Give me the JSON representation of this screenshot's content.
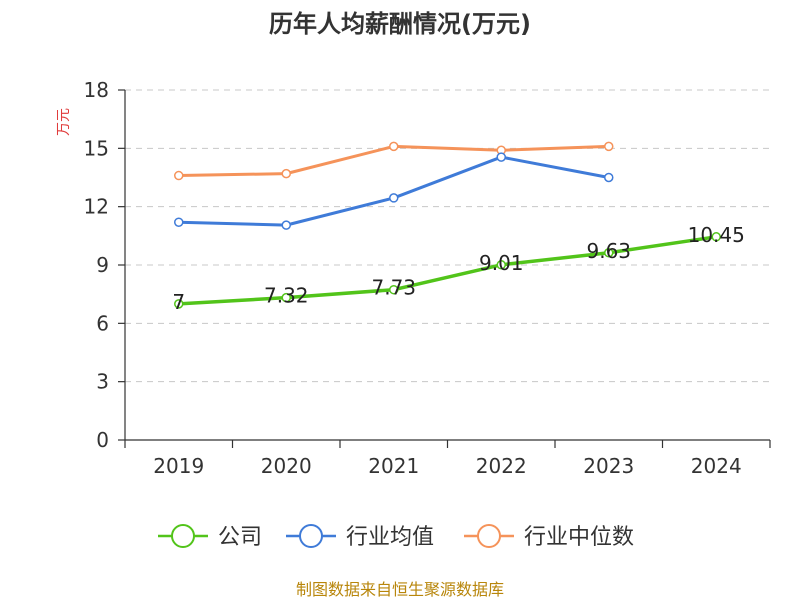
{
  "chart_data": {
    "type": "line",
    "title": "历年人均薪酬情况(万元)",
    "xlabel": "",
    "ylabel": "万元",
    "categories": [
      "2019",
      "2020",
      "2021",
      "2022",
      "2023",
      "2024"
    ],
    "ylim": [
      0,
      18
    ],
    "yticks": [
      0,
      3,
      6,
      9,
      12,
      15,
      18
    ],
    "grid": true,
    "legend_position": "bottom",
    "series": [
      {
        "name": "公司",
        "color": "#52c41a",
        "values": [
          7,
          7.32,
          7.73,
          9.01,
          9.63,
          10.45
        ],
        "labels": [
          "7",
          "7.32",
          "7.73",
          "9.01",
          "9.63",
          "10.45"
        ]
      },
      {
        "name": "行业均值",
        "color": "#3f7bd8",
        "values": [
          11.2,
          11.05,
          12.45,
          14.55,
          13.5,
          null
        ]
      },
      {
        "name": "行业中位数",
        "color": "#f5935a",
        "values": [
          13.6,
          13.7,
          15.1,
          14.9,
          15.1,
          null
        ]
      }
    ],
    "source": "制图数据来自恒生聚源数据库"
  }
}
